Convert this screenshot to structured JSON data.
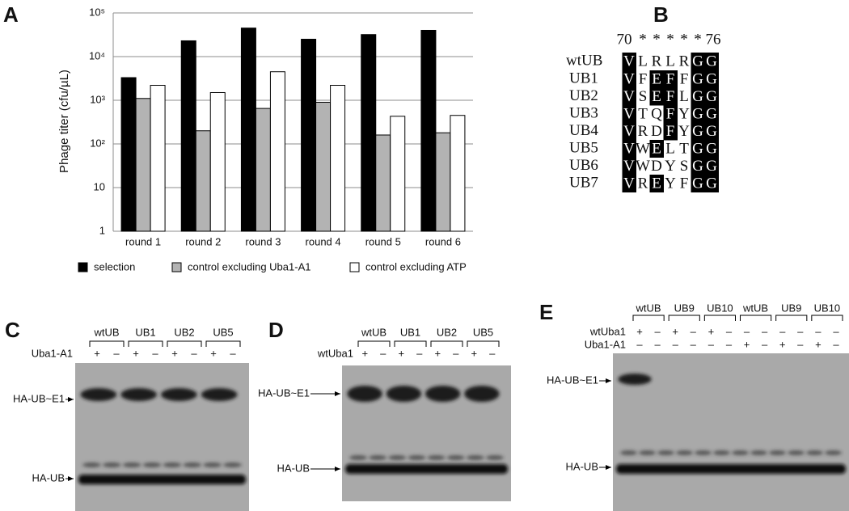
{
  "panel_labels": [
    "A",
    "B",
    "C",
    "D",
    "E"
  ],
  "chart_data": {
    "type": "bar",
    "y_label": "Phage titer (cfu/µL)",
    "categories": [
      "round 1",
      "round 2",
      "round 3",
      "round 4",
      "round 5",
      "round 6"
    ],
    "series": [
      {
        "name": "selection",
        "color": "#000000",
        "values": [
          3300,
          23000,
          45000,
          25000,
          32000,
          40000
        ]
      },
      {
        "name": "control excluding Uba1-A1",
        "color": "#b3b3b3",
        "values": [
          1100,
          200,
          650,
          900,
          160,
          180
        ]
      },
      {
        "name": "control excluding ATP",
        "color": "#ffffff",
        "values": [
          2200,
          1500,
          4500,
          2200,
          430,
          450
        ]
      }
    ],
    "log_scale": true,
    "ylim": [
      1,
      100000
    ],
    "yticks": [
      1,
      10,
      {
        "value": 100,
        "label": "10²"
      },
      {
        "value": 1000,
        "label": "10³"
      },
      {
        "value": 10000,
        "label": "10⁴"
      },
      {
        "value": 100000,
        "label": "10⁵"
      }
    ],
    "grid": true,
    "legend": "bottom"
  },
  "alignment": {
    "header": [
      "70",
      "*",
      "*",
      "*",
      "*",
      "*",
      "76"
    ],
    "rows": [
      {
        "name": "wtUB",
        "residues": [
          "V",
          "L",
          "R",
          "L",
          "R",
          "G",
          "G"
        ],
        "highlighted": [
          0,
          5,
          6
        ]
      },
      {
        "name": "UB1",
        "residues": [
          "V",
          "F",
          "E",
          "F",
          "F",
          "G",
          "G"
        ],
        "highlighted": [
          0,
          2,
          3,
          5,
          6
        ]
      },
      {
        "name": "UB2",
        "residues": [
          "V",
          "S",
          "E",
          "F",
          "L",
          "G",
          "G"
        ],
        "highlighted": [
          0,
          2,
          3,
          5,
          6
        ]
      },
      {
        "name": "UB3",
        "residues": [
          "V",
          "T",
          "Q",
          "F",
          "Y",
          "G",
          "G"
        ],
        "highlighted": [
          0,
          3,
          5,
          6
        ]
      },
      {
        "name": "UB4",
        "residues": [
          "V",
          "R",
          "D",
          "F",
          "Y",
          "G",
          "G"
        ],
        "highlighted": [
          0,
          3,
          5,
          6
        ]
      },
      {
        "name": "UB5",
        "residues": [
          "V",
          "W",
          "E",
          "L",
          "T",
          "G",
          "G"
        ],
        "highlighted": [
          0,
          2,
          5,
          6
        ]
      },
      {
        "name": "UB6",
        "residues": [
          "V",
          "W",
          "D",
          "Y",
          "S",
          "G",
          "G"
        ],
        "highlighted": [
          0,
          5,
          6
        ]
      },
      {
        "name": "UB7",
        "residues": [
          "V",
          "R",
          "E",
          "Y",
          "F",
          "G",
          "G"
        ],
        "highlighted": [
          0,
          2,
          5,
          6
        ]
      }
    ]
  },
  "blots": [
    {
      "groups": [
        "wtUB",
        "UB1",
        "UB2",
        "UB5"
      ],
      "rows": [
        {
          "name": "Uba1-A1",
          "signs": [
            "+",
            "–",
            "+",
            "–",
            "+",
            "–",
            "+",
            "–"
          ]
        }
      ],
      "bands": [
        "HA-UB~E1",
        "HA-UB"
      ]
    },
    {
      "groups": [
        "wtUB",
        "UB1",
        "UB2",
        "UB5"
      ],
      "rows": [
        {
          "name": "wtUba1",
          "signs": [
            "+",
            "–",
            "+",
            "–",
            "+",
            "–",
            "+",
            "–"
          ]
        }
      ],
      "bands": [
        "HA-UB~E1",
        "HA-UB"
      ]
    },
    {
      "groups": [
        "wtUB",
        "UB9",
        "UB10",
        "wtUB",
        "UB9",
        "UB10"
      ],
      "rows": [
        {
          "name": "wtUba1",
          "signs": [
            "+",
            "–",
            "+",
            "–",
            "+",
            "–",
            "–",
            "–",
            "–",
            "–",
            "–",
            "–"
          ]
        },
        {
          "name": "Uba1-A1",
          "signs": [
            "–",
            "–",
            "–",
            "–",
            "–",
            "–",
            "+",
            "–",
            "+",
            "–",
            "+",
            "–"
          ]
        }
      ],
      "bands": [
        "HA-UB~E1",
        "HA-UB"
      ]
    }
  ]
}
